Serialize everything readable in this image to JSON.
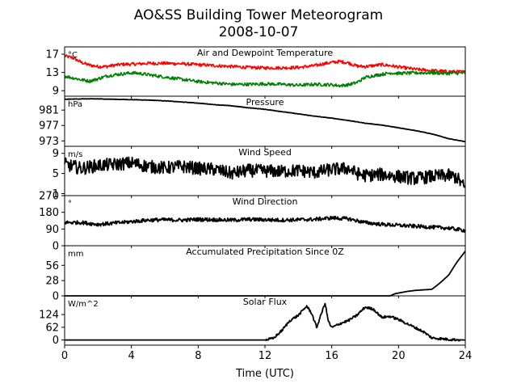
{
  "figure": {
    "title_line1": "AO&SS Building Tower Meteorogram",
    "title_line2": "2008-10-07",
    "xlabel": "Time (UTC)"
  },
  "chart_data": [
    {
      "type": "line",
      "title": "Air and Dewpoint Temperature",
      "unit": "°C",
      "xlim": [
        0,
        24
      ],
      "ylim": [
        7.8,
        18.6
      ],
      "yticks": [
        9,
        13,
        17
      ],
      "series": [
        {
          "color": "#ff0000",
          "x": [
            0,
            0.5,
            1,
            1.5,
            2,
            2.5,
            3,
            3.5,
            4,
            4.5,
            5,
            6,
            7,
            8,
            9,
            10,
            11,
            12,
            13,
            14,
            15,
            15.5,
            16,
            16.5,
            17,
            17.5,
            18,
            18.5,
            19,
            19.5,
            20,
            21,
            22,
            23,
            24
          ],
          "y": [
            16.6,
            16.2,
            15.2,
            14.6,
            14.3,
            14.3,
            14.6,
            14.8,
            14.8,
            14.9,
            15.0,
            15.0,
            14.9,
            14.7,
            14.5,
            14.3,
            14.1,
            14.0,
            14.0,
            14.1,
            14.5,
            14.9,
            15.2,
            15.4,
            15.1,
            14.4,
            14.3,
            14.5,
            14.7,
            14.5,
            14.2,
            13.7,
            13.4,
            13.2,
            13.1
          ]
        },
        {
          "color": "#008000",
          "x": [
            0,
            0.5,
            1,
            1.5,
            2,
            2.5,
            3,
            3.5,
            4,
            4.5,
            5,
            6,
            7,
            8,
            9,
            10,
            11,
            12,
            13,
            14,
            15,
            16,
            16.5,
            17,
            17.5,
            18,
            18.5,
            19,
            19.5,
            20,
            21,
            22,
            23,
            24
          ],
          "y": [
            12.2,
            11.8,
            11.4,
            11.1,
            11.6,
            12.2,
            12.5,
            12.7,
            12.9,
            12.8,
            12.5,
            12.0,
            11.5,
            11.0,
            10.7,
            10.4,
            10.4,
            10.5,
            10.4,
            10.2,
            10.4,
            10.3,
            10.1,
            10.3,
            10.8,
            11.9,
            12.3,
            12.6,
            12.9,
            12.8,
            12.9,
            12.9,
            12.8,
            12.9
          ]
        }
      ]
    },
    {
      "type": "line",
      "title": "Pressure",
      "unit": "hPa",
      "xlim": [
        0,
        24
      ],
      "ylim": [
        971.6,
        984.6
      ],
      "yticks": [
        973,
        977,
        981
      ],
      "series": [
        {
          "color": "#000000",
          "x": [
            0,
            1,
            2,
            3,
            4,
            5,
            6,
            7,
            8,
            9,
            10,
            11,
            12,
            13,
            14,
            15,
            16,
            17,
            18,
            19,
            20,
            21,
            22,
            23,
            24
          ],
          "y": [
            983.8,
            983.9,
            983.9,
            983.8,
            983.7,
            983.6,
            983.4,
            983.1,
            982.8,
            982.4,
            982.1,
            981.6,
            981.2,
            980.6,
            980.0,
            979.4,
            978.9,
            978.3,
            977.6,
            977.1,
            976.4,
            975.7,
            974.8,
            973.6,
            972.8
          ]
        }
      ]
    },
    {
      "type": "line",
      "title": "Wind Speed",
      "unit": "m/s",
      "xlim": [
        0,
        24
      ],
      "ylim": [
        0.6,
        10.4
      ],
      "yticks": [
        1,
        5,
        9
      ],
      "series": [
        {
          "color": "#000000",
          "x": [
            0,
            1,
            2,
            3,
            4,
            5,
            6,
            7,
            8,
            9,
            10,
            11,
            12,
            13,
            14,
            15,
            16,
            17,
            17.5,
            18,
            19,
            20,
            21,
            22,
            23,
            23.5,
            24
          ],
          "y": [
            6.8,
            6.0,
            6.6,
            6.8,
            7.1,
            6.4,
            6.1,
            6.4,
            6.0,
            5.8,
            5.0,
            5.6,
            5.5,
            5.4,
            5.6,
            5.2,
            5.8,
            6.0,
            5.0,
            4.6,
            4.8,
            4.4,
            4.0,
            4.4,
            4.6,
            4.2,
            2.0
          ]
        }
      ]
    },
    {
      "type": "line",
      "title": "Wind Direction",
      "unit": "°",
      "xlim": [
        0,
        24
      ],
      "ylim": [
        0,
        270
      ],
      "yticks": [
        0,
        90,
        180,
        270
      ],
      "series": [
        {
          "color": "#000000",
          "x": [
            0,
            1,
            2,
            3,
            4,
            5,
            6,
            7,
            8,
            9,
            10,
            11,
            12,
            13,
            14,
            15,
            16,
            17,
            18,
            19,
            20,
            21,
            22,
            23,
            24
          ],
          "y": [
            125,
            125,
            115,
            122,
            130,
            138,
            140,
            138,
            142,
            140,
            138,
            142,
            140,
            138,
            140,
            142,
            150,
            145,
            125,
            115,
            110,
            105,
            100,
            95,
            82
          ]
        }
      ]
    },
    {
      "type": "line",
      "title": "Accumulated Precipitation Since 0Z",
      "unit": "mm",
      "xlim": [
        0,
        24
      ],
      "ylim": [
        0,
        92
      ],
      "yticks": [
        0,
        28,
        56
      ],
      "series": [
        {
          "color": "#000000",
          "x": [
            0,
            19.5,
            19.8,
            20.5,
            21,
            22,
            22.5,
            23,
            23.5,
            24
          ],
          "y": [
            0,
            0,
            4,
            8,
            10,
            12,
            24,
            38,
            62,
            82
          ]
        }
      ]
    },
    {
      "type": "line",
      "title": "Solar Flux",
      "unit": "W/m^2",
      "xlim": [
        0,
        24
      ],
      "ylim": [
        -25,
        215
      ],
      "yticks": [
        0,
        62,
        124
      ],
      "series": [
        {
          "color": "#000000",
          "x": [
            0,
            12,
            12.5,
            13,
            13.5,
            14,
            14.5,
            14.8,
            15.1,
            15.3,
            15.6,
            15.8,
            16,
            16.5,
            17,
            17.5,
            18,
            18.5,
            19,
            19.5,
            20,
            20.5,
            21,
            21.5,
            22,
            23,
            24
          ],
          "y": [
            0,
            0,
            8,
            45,
            95,
            120,
            165,
            130,
            60,
            110,
            180,
            90,
            60,
            80,
            95,
            120,
            160,
            150,
            110,
            115,
            100,
            80,
            60,
            40,
            10,
            3,
            0
          ]
        }
      ]
    }
  ]
}
